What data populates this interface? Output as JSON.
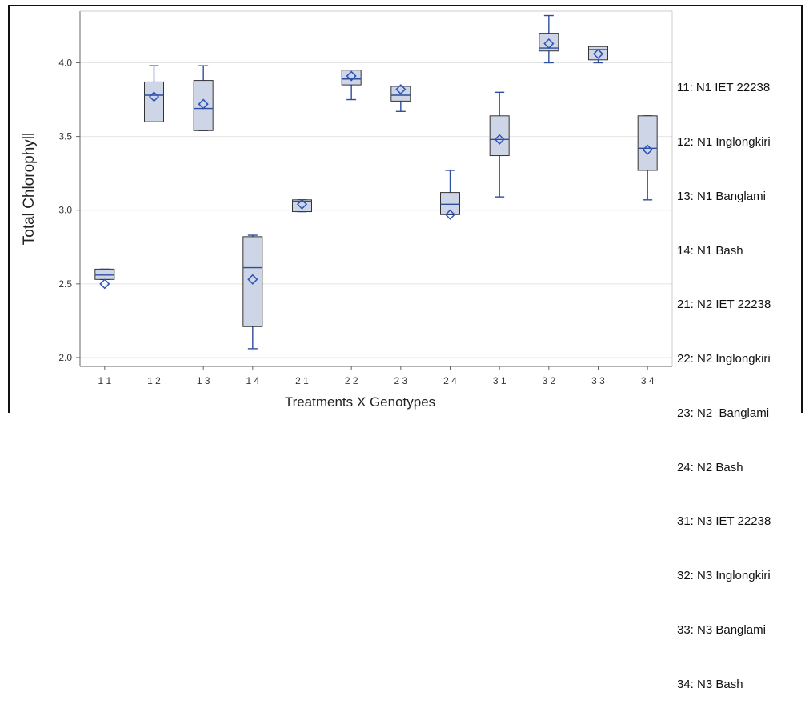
{
  "chart_data": {
    "type": "box",
    "xlabel": "Treatments X Genotypes",
    "ylabel": "Total Chlorophyll",
    "ylim": [
      1.94,
      4.35
    ],
    "yticks": [
      "2.0",
      "2.5",
      "3.0",
      "3.5",
      "4.0"
    ],
    "grid": "horizontal",
    "legend_position": "right",
    "colors": {
      "box_fill": "#cdd5e6",
      "stroke": "#2d4d9e",
      "median": "#2d4d9e",
      "mean_marker": "#2d52b8"
    },
    "groups": [
      {
        "label": "1 1",
        "whisker_low": 2.53,
        "q1": 2.53,
        "median": 2.56,
        "q3": 2.6,
        "whisker_high": 2.6,
        "mean": 2.5
      },
      {
        "label": "1 2",
        "whisker_low": 3.6,
        "q1": 3.6,
        "median": 3.78,
        "q3": 3.87,
        "whisker_high": 3.98,
        "mean": 3.77
      },
      {
        "label": "1 3",
        "whisker_low": 3.54,
        "q1": 3.54,
        "median": 3.69,
        "q3": 3.88,
        "whisker_high": 3.98,
        "mean": 3.72
      },
      {
        "label": "1 4",
        "whisker_low": 2.06,
        "q1": 2.21,
        "median": 2.61,
        "q3": 2.82,
        "whisker_high": 2.83,
        "mean": 2.53
      },
      {
        "label": "2 1",
        "whisker_low": 2.99,
        "q1": 2.99,
        "median": 3.06,
        "q3": 3.07,
        "whisker_high": 3.07,
        "mean": 3.04
      },
      {
        "label": "2 2",
        "whisker_low": 3.75,
        "q1": 3.85,
        "median": 3.89,
        "q3": 3.95,
        "whisker_high": 3.95,
        "mean": 3.91
      },
      {
        "label": "2 3",
        "whisker_low": 3.67,
        "q1": 3.74,
        "median": 3.78,
        "q3": 3.84,
        "whisker_high": 3.84,
        "mean": 3.82
      },
      {
        "label": "2 4",
        "whisker_low": 2.97,
        "q1": 2.97,
        "median": 3.04,
        "q3": 3.12,
        "whisker_high": 3.27,
        "mean": 2.97
      },
      {
        "label": "3 1",
        "whisker_low": 3.09,
        "q1": 3.37,
        "median": 3.48,
        "q3": 3.64,
        "whisker_high": 3.8,
        "mean": 3.48
      },
      {
        "label": "3 2",
        "whisker_low": 4.0,
        "q1": 4.08,
        "median": 4.1,
        "q3": 4.2,
        "whisker_high": 4.32,
        "mean": 4.13
      },
      {
        "label": "3 3",
        "whisker_low": 4.0,
        "q1": 4.02,
        "median": 4.09,
        "q3": 4.11,
        "whisker_high": 4.11,
        "mean": 4.06
      },
      {
        "label": "3 4",
        "whisker_low": 3.07,
        "q1": 3.27,
        "median": 3.42,
        "q3": 3.64,
        "whisker_high": 3.64,
        "mean": 3.41
      }
    ]
  },
  "legend": [
    "11: N1 IET 22238",
    "12: N1 Inglongkiri",
    "13: N1 Banglami",
    "14: N1 Bash",
    "21: N2 IET 22238",
    "22: N2 Inglongkiri",
    "23: N2  Banglami",
    "24: N2 Bash",
    "31: N3 IET 22238",
    "32: N3 Inglongkiri",
    "33: N3 Banglami",
    "34: N3 Bash"
  ]
}
